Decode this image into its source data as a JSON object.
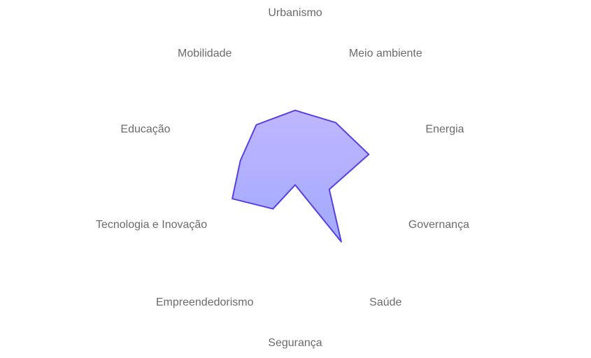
{
  "chart_data": {
    "type": "radar",
    "title": "",
    "categories": [
      "Urbanismo",
      "Meio ambiente",
      "Energia",
      "Governança",
      "Saúde",
      "Segurança",
      "Empreendedorismo",
      "Tecnologia e Inovação",
      "Educação",
      "Mobilidade"
    ],
    "series": [
      {
        "values": [
          0.72,
          0.73,
          0.82,
          0.38,
          0.83,
          0.07,
          0.4,
          0.7,
          0.61,
          0.7
        ]
      }
    ],
    "range": [
      0,
      1
    ],
    "grid": false,
    "legend": "none",
    "colors": {
      "fill_top": "#c0b6ff",
      "fill_bottom": "#a1a9ff",
      "stroke": "#5540e8",
      "label": "#6b6b6b"
    }
  }
}
